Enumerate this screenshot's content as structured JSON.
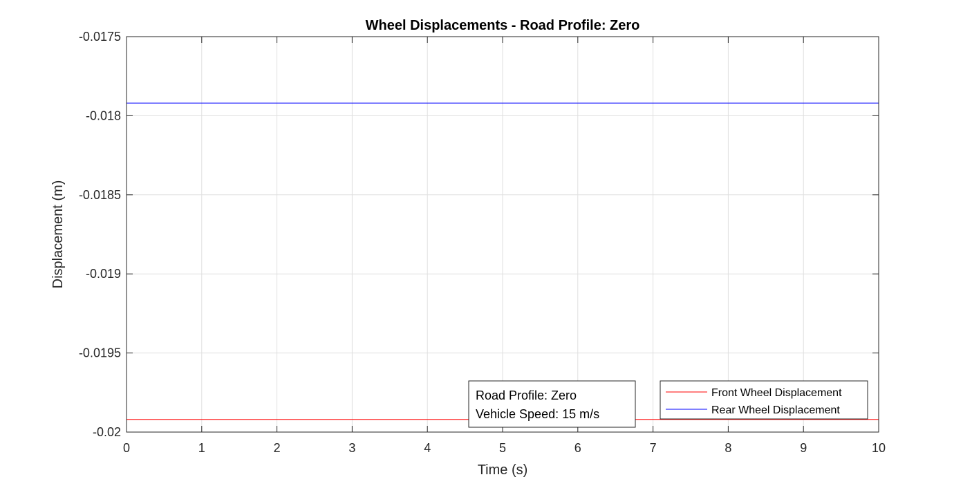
{
  "chart_data": {
    "type": "line",
    "title": "Wheel Displacements - Road Profile: Zero",
    "xlabel": "Time (s)",
    "ylabel": "Displacement (m)",
    "xlim": [
      0,
      10
    ],
    "ylim": [
      -0.02,
      -0.0175
    ],
    "xticks": [
      0,
      1,
      2,
      3,
      4,
      5,
      6,
      7,
      8,
      9,
      10
    ],
    "xtick_labels": [
      "0",
      "1",
      "2",
      "3",
      "4",
      "5",
      "6",
      "7",
      "8",
      "9",
      "10"
    ],
    "yticks": [
      -0.02,
      -0.0195,
      -0.019,
      -0.0185,
      -0.018,
      -0.0175
    ],
    "ytick_labels": [
      "-0.02",
      "-0.0195",
      "-0.019",
      "-0.0185",
      "-0.018",
      "-0.0175"
    ],
    "grid": true,
    "legend_position": "bottom-right",
    "series": [
      {
        "name": "Front Wheel Displacement",
        "color": "#ff0000",
        "x": [
          0,
          10
        ],
        "y": [
          -0.01992,
          -0.01992
        ]
      },
      {
        "name": "Rear Wheel Displacement",
        "color": "#0000ff",
        "x": [
          0,
          10
        ],
        "y": [
          -0.01792,
          -0.01792
        ]
      }
    ],
    "annotation": {
      "lines": [
        "Road Profile: Zero",
        "Vehicle Speed: 15 m/s"
      ]
    }
  }
}
